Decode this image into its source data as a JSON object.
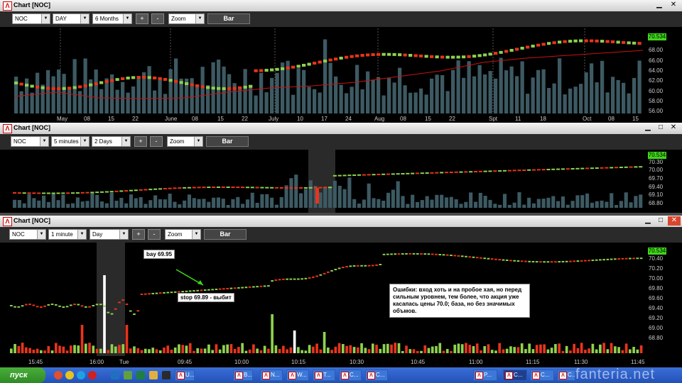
{
  "win1": {
    "title": "Chart [NOC]",
    "controls": {
      "symbol": "NOC",
      "interval": "DAY",
      "range": "6 Months",
      "plus": "+",
      "minus": "-",
      "zoom": "Zoom",
      "bar": "Bar"
    },
    "last_price": "70.534",
    "price_axis": [
      "68.00",
      "66.00",
      "64.00",
      "62.00",
      "60.00",
      "58.00",
      "56.00"
    ],
    "date_axis": [
      "May",
      "08",
      "15",
      "22",
      "June",
      "08",
      "15",
      "22",
      "July",
      "10",
      "17",
      "24",
      "Aug",
      "08",
      "15",
      "22",
      "Spt",
      "11",
      "18",
      "Oct",
      "08",
      "15"
    ]
  },
  "win2": {
    "title": "Chart [NOC]",
    "controls": {
      "symbol": "NOC",
      "interval": "5 minutes",
      "range": "2 Days",
      "plus": "+",
      "minus": "-",
      "zoom": "Zoom",
      "bar": "Bar"
    },
    "last_price": "70.534",
    "price_axis": [
      "70.30",
      "70.00",
      "69.70",
      "69.40",
      "69.10",
      "68.80"
    ]
  },
  "win3": {
    "title": "Chart [NOC]",
    "controls": {
      "symbol": "NOC",
      "interval": "1 minute",
      "range": "Day",
      "plus": "+",
      "minus": "-",
      "zoom": "Zoom",
      "bar": "Bar"
    },
    "last_price": "70.534",
    "price_axis": [
      "70.40",
      "70.20",
      "70.00",
      "69.80",
      "69.60",
      "69.40",
      "69.20",
      "69.00",
      "68.80"
    ],
    "time_axis": [
      "15:45",
      "16:00",
      "Tue",
      "09:45",
      "10:00",
      "10:15",
      "10:30",
      "10:45",
      "11:00",
      "11:15",
      "11:30",
      "11:45"
    ],
    "annotations": {
      "buy": "bay 69.95",
      "stop": "stop 69.89 - выбит",
      "note": "Ошибки: вход хоть и на пробое хая, но перед сильным уровнем, тем более, что акция уже касапась цены 70.0; база, но без значимых объмов."
    }
  },
  "taskbar": {
    "start": "пуск",
    "items": [
      "U...",
      "B...",
      "N...",
      "W...",
      "T...",
      "C...",
      "C...",
      "P...",
      "C...",
      "C...",
      "C..."
    ]
  },
  "watermark": "fanteria.net",
  "colors": {
    "up": "#8fd14f",
    "down": "#e8341c",
    "volume": "#3d5a63",
    "ma": "#cc1111",
    "price_tag": "#3fd61a"
  }
}
